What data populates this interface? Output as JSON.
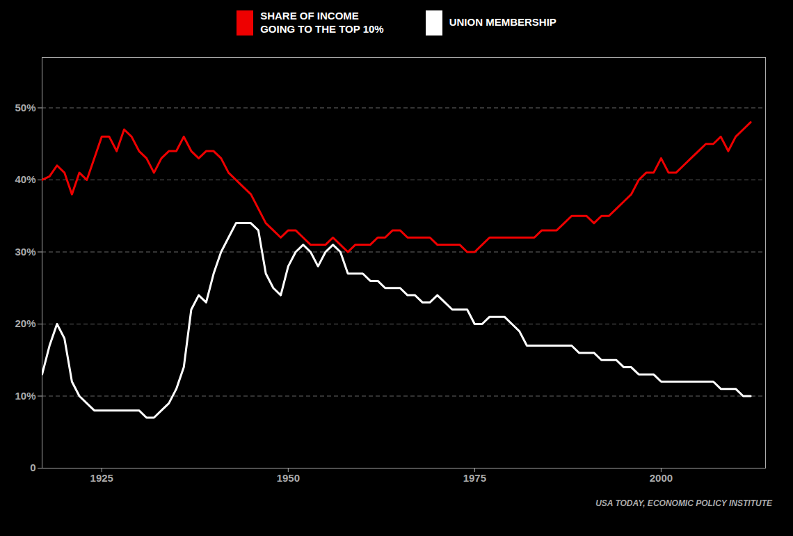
{
  "chart_data": {
    "type": "line",
    "x": [
      1917,
      1918,
      1919,
      1920,
      1921,
      1922,
      1923,
      1924,
      1925,
      1926,
      1927,
      1928,
      1929,
      1930,
      1931,
      1932,
      1933,
      1934,
      1935,
      1936,
      1937,
      1938,
      1939,
      1940,
      1941,
      1942,
      1943,
      1944,
      1945,
      1946,
      1947,
      1948,
      1949,
      1950,
      1951,
      1952,
      1953,
      1954,
      1955,
      1956,
      1957,
      1958,
      1959,
      1960,
      1961,
      1962,
      1963,
      1964,
      1965,
      1966,
      1967,
      1968,
      1969,
      1970,
      1971,
      1972,
      1973,
      1974,
      1975,
      1976,
      1977,
      1978,
      1979,
      1980,
      1981,
      1982,
      1983,
      1984,
      1985,
      1986,
      1987,
      1988,
      1989,
      1990,
      1991,
      1992,
      1993,
      1994,
      1995,
      1996,
      1997,
      1998,
      1999,
      2000,
      2001,
      2002,
      2003,
      2004,
      2005,
      2006,
      2007,
      2008,
      2009,
      2010,
      2011,
      2012
    ],
    "series": [
      {
        "name": "SHARE OF INCOME\nGOING TO THE TOP 10%",
        "color": "#ee0000",
        "values": [
          40,
          40.5,
          42,
          41,
          38,
          41,
          40,
          43,
          46,
          46,
          44,
          47,
          46,
          44,
          43,
          41,
          43,
          44,
          44,
          46,
          44,
          43,
          44,
          44,
          43,
          41,
          40,
          39,
          38,
          36,
          34,
          33,
          32,
          33,
          33,
          32,
          31,
          31,
          31,
          32,
          31,
          30,
          31,
          31,
          31,
          32,
          32,
          33,
          33,
          32,
          32,
          32,
          32,
          31,
          31,
          31,
          31,
          30,
          30,
          31,
          32,
          32,
          32,
          32,
          32,
          32,
          32,
          33,
          33,
          33,
          34,
          35,
          35,
          35,
          34,
          35,
          35,
          36,
          37,
          38,
          40,
          41,
          41,
          43,
          41,
          41,
          42,
          43,
          44,
          45,
          45,
          46,
          44,
          46,
          47,
          48
        ]
      },
      {
        "name": "UNION MEMBERSHIP",
        "color": "#ffffff",
        "values": [
          13,
          17,
          20,
          18,
          12,
          10,
          9,
          8,
          8,
          8,
          8,
          8,
          8,
          8,
          7,
          7,
          8,
          9,
          11,
          14,
          22,
          24,
          23,
          27,
          30,
          32,
          34,
          34,
          34,
          33,
          27,
          25,
          24,
          28,
          30,
          31,
          30,
          28,
          30,
          31,
          30,
          27,
          27,
          27,
          26,
          26,
          25,
          25,
          25,
          24,
          24,
          23,
          23,
          24,
          23,
          22,
          22,
          22,
          20,
          20,
          21,
          21,
          21,
          20,
          19,
          17,
          17,
          17,
          17,
          17,
          17,
          17,
          16,
          16,
          16,
          15,
          15,
          15,
          14,
          14,
          13,
          13,
          13,
          12,
          12,
          12,
          12,
          12,
          12,
          12,
          12,
          11,
          11,
          11,
          10,
          10
        ]
      }
    ],
    "xlim": [
      1917,
      2014
    ],
    "xticks": [
      1925,
      1950,
      1975,
      2000
    ],
    "ylim": [
      0,
      57
    ],
    "yticks": [
      0,
      {
        "value": 10,
        "label": "10%"
      },
      {
        "value": 20,
        "label": "20%"
      },
      {
        "value": 30,
        "label": "30%"
      },
      {
        "value": 40,
        "label": "40%"
      },
      {
        "value": 50,
        "label": "50%"
      }
    ],
    "grid": true,
    "legend": "top",
    "caption": "USA TODAY, ECONOMIC POLICY INSTITUTE"
  }
}
